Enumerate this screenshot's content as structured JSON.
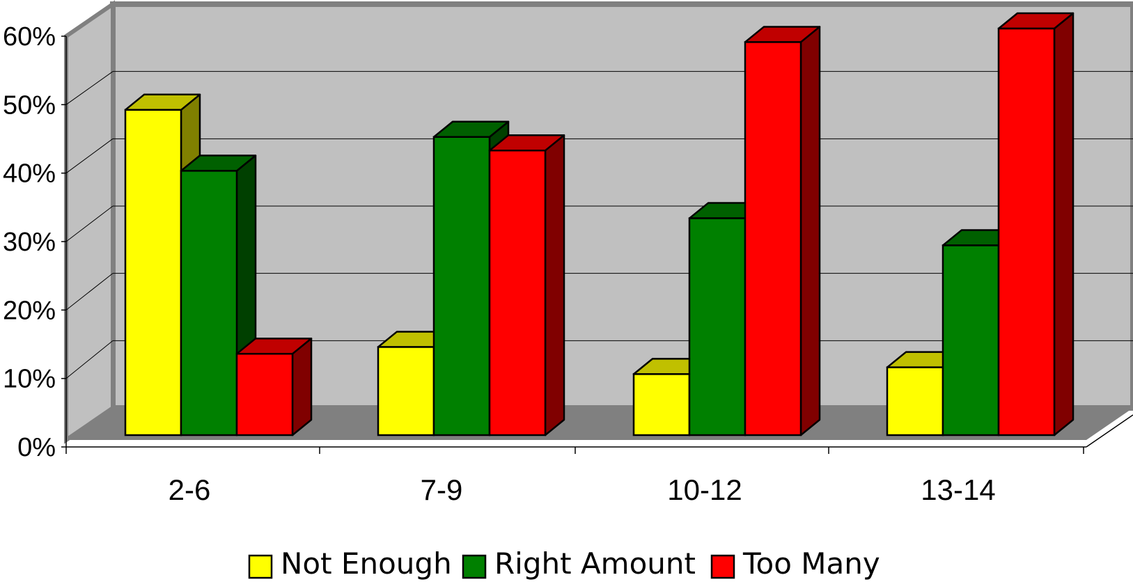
{
  "chart_data": {
    "type": "bar",
    "categories": [
      "2-6",
      "7-9",
      "10-12",
      "13-14"
    ],
    "series": [
      {
        "name": "Not Enough",
        "values": [
          48,
          13,
          9,
          10
        ],
        "color": "#ffff00",
        "side_color": "#808000",
        "top_color": "#c0c000"
      },
      {
        "name": "Right Amount",
        "values": [
          39,
          44,
          32,
          28
        ],
        "color": "#008000",
        "side_color": "#004000",
        "top_color": "#006000"
      },
      {
        "name": "Too Many",
        "values": [
          12,
          42,
          58,
          60
        ],
        "color": "#ff0000",
        "side_color": "#800000",
        "top_color": "#c00000"
      }
    ],
    "y_ticks": [
      "0%",
      "10%",
      "20%",
      "30%",
      "40%",
      "50%",
      "60%"
    ],
    "ylim": [
      0,
      60
    ],
    "grid": true,
    "legend_position": "bottom",
    "style": "3d-clustered-column"
  }
}
